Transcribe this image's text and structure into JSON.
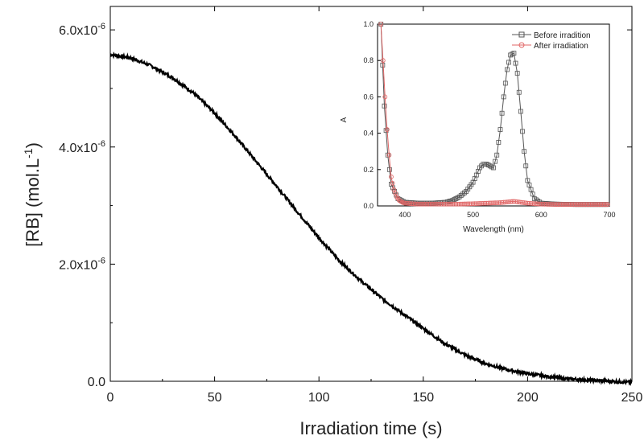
{
  "chart_data": [
    {
      "type": "line",
      "xlabel": "Irradiation time (s)",
      "ylabel_main": "[RB] (mol.L",
      "ylabel_exp": "-1",
      "ylabel_close": ")",
      "xlim": [
        0,
        250
      ],
      "ylim": [
        0,
        6.4e-06
      ],
      "xticks": [
        "0",
        "50",
        "100",
        "150",
        "200",
        "250"
      ],
      "xtick_values": [
        0,
        50,
        100,
        150,
        200,
        250
      ],
      "yticks": [
        {
          "mantissa": "0.0",
          "exp": ""
        },
        {
          "mantissa": "2.0x10",
          "exp": "-6"
        },
        {
          "mantissa": "4.0x10",
          "exp": "-6"
        },
        {
          "mantissa": "6.0x10",
          "exp": "-6"
        }
      ],
      "ytick_values": [
        0,
        2e-06,
        4e-06,
        6e-06
      ],
      "series": [
        {
          "name": "[RB]",
          "color": "#000000",
          "x": [
            0,
            10,
            20,
            30,
            40,
            50,
            60,
            70,
            80,
            90,
            100,
            110,
            120,
            130,
            140,
            150,
            160,
            170,
            180,
            190,
            200,
            210,
            220,
            230,
            240,
            250
          ],
          "y": [
            5.58e-06,
            5.52e-06,
            5.38e-06,
            5.18e-06,
            4.92e-06,
            4.58e-06,
            4.18e-06,
            3.75e-06,
            3.32e-06,
            2.88e-06,
            2.45e-06,
            2.05e-06,
            1.72e-06,
            1.42e-06,
            1.16e-06,
            9e-07,
            6.5e-07,
            4.5e-07,
            3e-07,
            2e-07,
            1.3e-07,
            8e-08,
            4e-08,
            2e-08,
            0.0,
            -2e-08
          ]
        }
      ]
    },
    {
      "type": "scatter",
      "xlabel": "Wavelength (nm)",
      "ylabel": "A",
      "xlim": [
        360,
        700
      ],
      "ylim": [
        0,
        1.0
      ],
      "xticks": [
        "400",
        "500",
        "600",
        "700"
      ],
      "xtick_values": [
        400,
        500,
        600,
        700
      ],
      "yticks": [
        "0.0",
        "0.2",
        "0.4",
        "0.6",
        "0.8",
        "1.0"
      ],
      "ytick_values": [
        0,
        0.2,
        0.4,
        0.6,
        0.8,
        1.0
      ],
      "legend_position": "top-right",
      "series": [
        {
          "name": "Before irradition",
          "marker": "square",
          "color": "#555555",
          "x": [
            365,
            370,
            375,
            380,
            390,
            400,
            420,
            440,
            460,
            470,
            480,
            490,
            500,
            505,
            510,
            515,
            520,
            525,
            530,
            535,
            540,
            545,
            550,
            555,
            560,
            565,
            570,
            575,
            580,
            590,
            600,
            620,
            650,
            680,
            700
          ],
          "y": [
            1.0,
            0.55,
            0.28,
            0.12,
            0.04,
            0.02,
            0.015,
            0.015,
            0.02,
            0.03,
            0.05,
            0.08,
            0.13,
            0.17,
            0.21,
            0.23,
            0.23,
            0.22,
            0.21,
            0.28,
            0.42,
            0.6,
            0.75,
            0.83,
            0.84,
            0.73,
            0.52,
            0.3,
            0.14,
            0.04,
            0.015,
            0.01,
            0.008,
            0.008,
            0.008
          ]
        },
        {
          "name": "After irradiation",
          "marker": "circle",
          "color": "#e06666",
          "x": [
            365,
            368,
            371,
            374,
            377,
            380,
            384,
            388,
            392,
            396,
            400,
            410,
            420,
            440,
            460,
            480,
            500,
            520,
            540,
            560,
            570,
            580,
            600,
            620,
            640,
            660,
            680,
            700
          ],
          "y": [
            1.0,
            0.8,
            0.6,
            0.42,
            0.28,
            0.16,
            0.09,
            0.05,
            0.03,
            0.02,
            0.015,
            0.012,
            0.01,
            0.01,
            0.01,
            0.01,
            0.012,
            0.015,
            0.018,
            0.025,
            0.02,
            0.015,
            0.01,
            0.008,
            0.008,
            0.008,
            0.008,
            0.008
          ]
        }
      ]
    }
  ]
}
